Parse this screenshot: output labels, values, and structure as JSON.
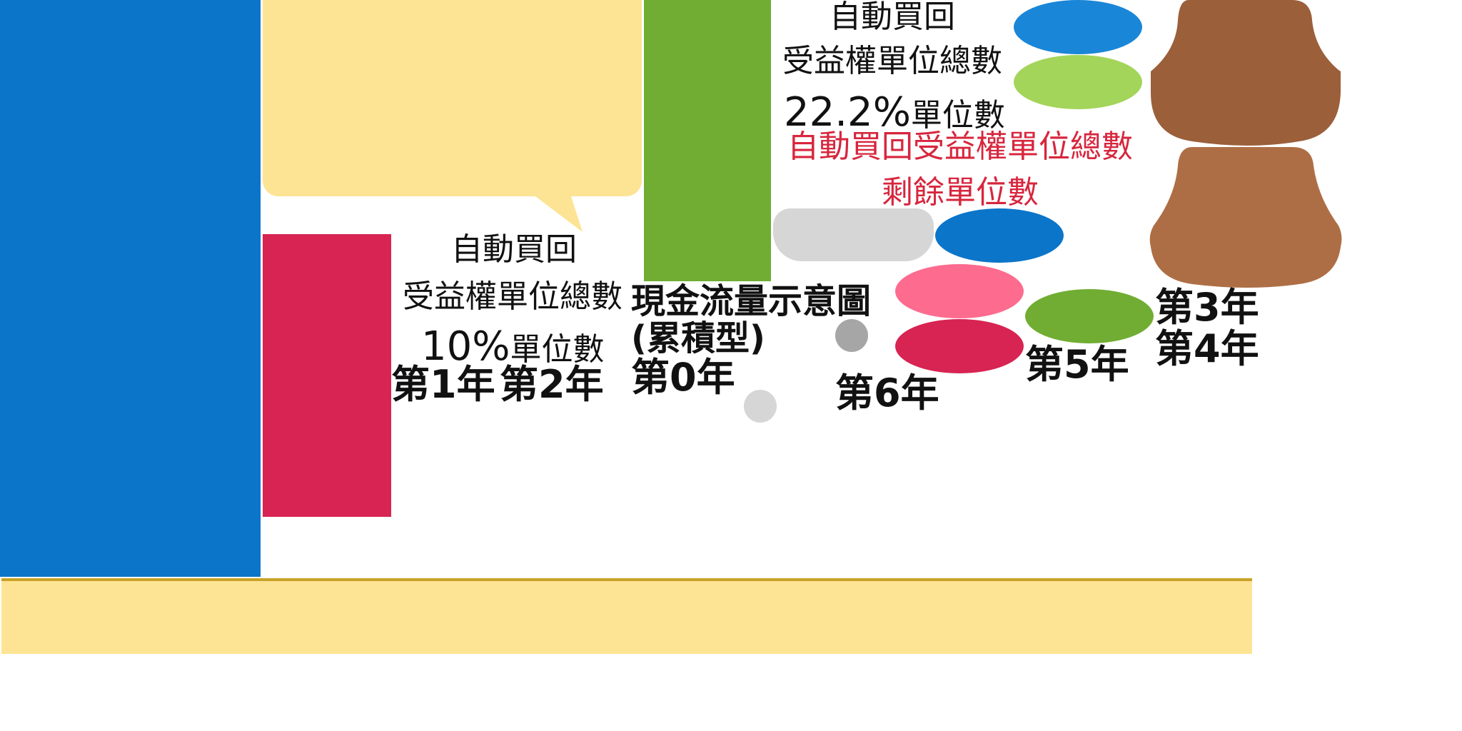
{
  "labels": {
    "auto_buyback_1": "自動買回",
    "total_units_1": "受益權單位總數",
    "pct_10": "10%",
    "units_word_1": "單位數",
    "year1": "第1年",
    "year2": "第2年",
    "title_line1": "現金流量示意圖",
    "title_line2": "(累積型)",
    "year0": "第0年",
    "auto_buyback_2": "自動買回",
    "total_units_2": "受益權單位總數",
    "pct_22": "22.2%",
    "units_word_2": "單位數",
    "red_line1": "自動買回受益權單位總數",
    "red_line2": "剩餘單位數",
    "year6": "第6年",
    "year5": "第5年",
    "year3": "第3年",
    "year4": "第4年"
  },
  "colors": {
    "blue": "#0b75c9",
    "blue_light": "#1a86d8",
    "yellow": "#fde494",
    "gold_line": "#c9a227",
    "green": "#70ad32",
    "green_light": "#a3d55a",
    "crimson": "#d72452",
    "pink": "#fd6b8f",
    "grey_light": "#d6d6d6",
    "grey_dark": "#a6a6a6",
    "brown_dark": "#9b5f3a",
    "brown_light": "#ae6e45",
    "red_text": "#d7263d"
  }
}
